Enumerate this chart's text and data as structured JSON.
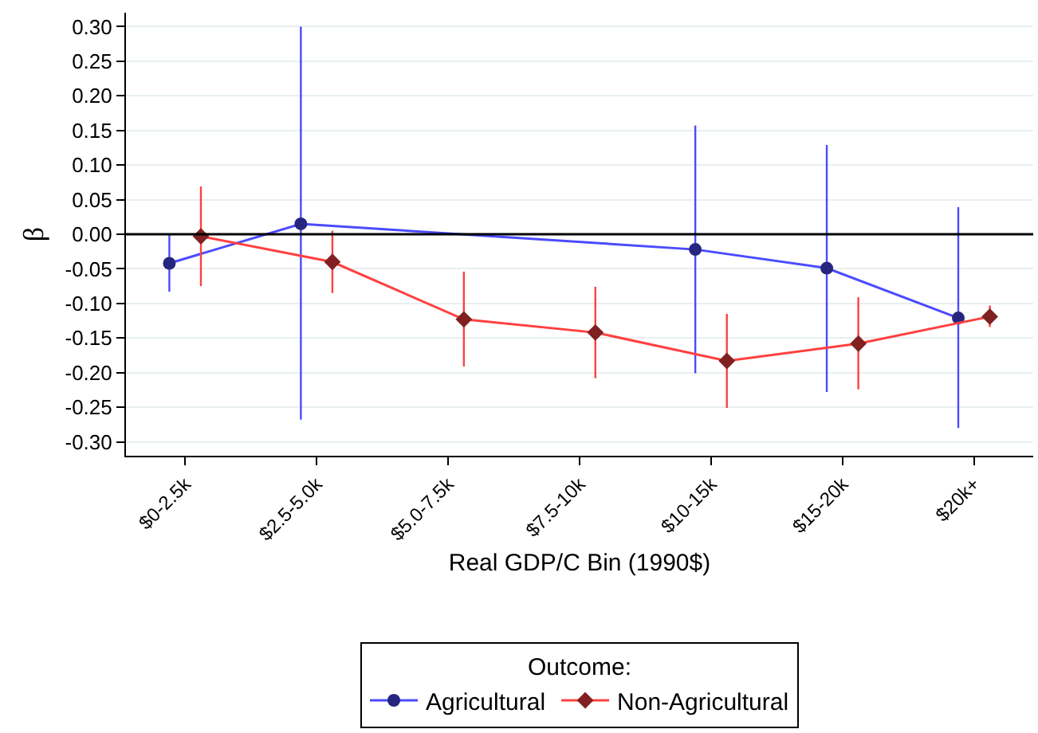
{
  "chart_data": {
    "type": "line",
    "xlabel": "Real GDP/C Bin (1990$)",
    "ylabel": "β",
    "legend_title": "Outcome:",
    "legend": "bottom",
    "grid": "y",
    "line_style": "solid",
    "categories": [
      "$0-2.5k",
      "$2.5-5.0k",
      "$5.0-7.5k",
      "$7.5-10k",
      "$10-15k",
      "$15-20k",
      "$20k+"
    ],
    "ylim": [
      -0.32,
      0.32
    ],
    "yticks": [
      {
        "value": 0.3,
        "label": "0.30"
      },
      {
        "value": 0.25,
        "label": "0.25"
      },
      {
        "value": 0.2,
        "label": "0.20"
      },
      {
        "value": 0.15,
        "label": "0.15"
      },
      {
        "value": 0.1,
        "label": "0.10"
      },
      {
        "value": 0.05,
        "label": "0.05"
      },
      {
        "value": 0,
        "label": "0.00"
      },
      {
        "value": -0.05,
        "label": "-0.05"
      },
      {
        "value": -0.1,
        "label": "-0.10"
      },
      {
        "value": -0.15,
        "label": "-0.15"
      },
      {
        "value": -0.2,
        "label": "-0.20"
      },
      {
        "value": -0.25,
        "label": "-0.25"
      },
      {
        "value": -0.3,
        "label": "-0.30"
      }
    ],
    "ref_lines": [
      {
        "axis": "y",
        "value": 0,
        "color": "#000000"
      }
    ],
    "series": [
      {
        "name": "Agricultural",
        "color": "#4b4bff",
        "marker": "circle",
        "values": [
          -0.042,
          0.015,
          null,
          null,
          -0.022,
          -0.049,
          -0.121
        ],
        "errors": [
          [
            -0.083,
            0.0
          ],
          [
            -0.268,
            0.3
          ],
          null,
          null,
          [
            -0.201,
            0.157
          ],
          [
            -0.228,
            0.129
          ],
          [
            -0.28,
            0.039
          ]
        ]
      },
      {
        "name": "Non-Agricultural",
        "color": "#ff4040",
        "marker": "diamond",
        "values": [
          -0.003,
          -0.04,
          -0.123,
          -0.142,
          -0.183,
          -0.158,
          -0.119
        ],
        "errors": [
          [
            -0.075,
            0.069
          ],
          [
            -0.085,
            0.005
          ],
          [
            -0.191,
            -0.054
          ],
          [
            -0.208,
            -0.076
          ],
          [
            -0.251,
            -0.115
          ],
          [
            -0.224,
            -0.091
          ],
          [
            -0.134,
            -0.103
          ]
        ]
      }
    ]
  }
}
